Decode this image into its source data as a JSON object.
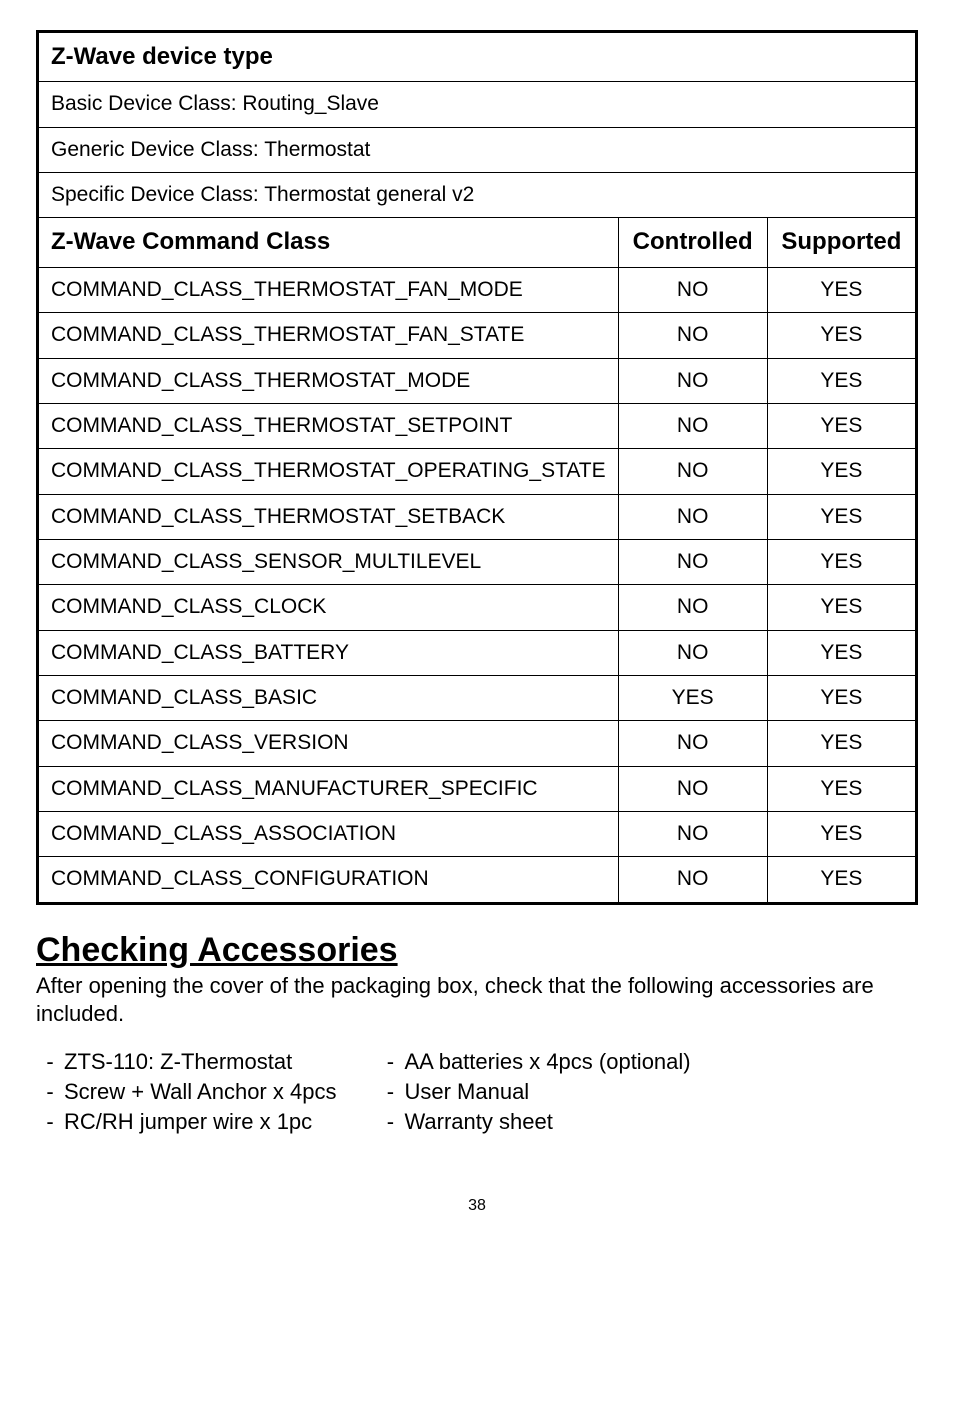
{
  "table": {
    "device_type_header": "Z-Wave device type",
    "basic_class": "Basic Device Class: Routing_Slave",
    "generic_class": "Generic Device Class: Thermostat",
    "specific_class": "Specific Device Class: Thermostat general v2",
    "col_class": "Z-Wave Command Class",
    "col_controlled": "Controlled",
    "col_supported": "Supported",
    "rows": [
      {
        "class": "COMMAND_CLASS_THERMOSTAT_FAN_MODE",
        "controlled": "NO",
        "supported": "YES"
      },
      {
        "class": "COMMAND_CLASS_THERMOSTAT_FAN_STATE",
        "controlled": "NO",
        "supported": "YES"
      },
      {
        "class": "COMMAND_CLASS_THERMOSTAT_MODE",
        "controlled": "NO",
        "supported": "YES"
      },
      {
        "class": "COMMAND_CLASS_THERMOSTAT_SETPOINT",
        "controlled": "NO",
        "supported": "YES"
      },
      {
        "class": "COMMAND_CLASS_THERMOSTAT_OPERATING_STATE",
        "controlled": "NO",
        "supported": "YES"
      },
      {
        "class": "COMMAND_CLASS_THERMOSTAT_SETBACK",
        "controlled": "NO",
        "supported": "YES"
      },
      {
        "class": "COMMAND_CLASS_SENSOR_MULTILEVEL",
        "controlled": "NO",
        "supported": "YES"
      },
      {
        "class": "COMMAND_CLASS_CLOCK",
        "controlled": "NO",
        "supported": "YES"
      },
      {
        "class": "COMMAND_CLASS_BATTERY",
        "controlled": "NO",
        "supported": "YES"
      },
      {
        "class": "COMMAND_CLASS_BASIC",
        "controlled": "YES",
        "supported": "YES"
      },
      {
        "class": "COMMAND_CLASS_VERSION",
        "controlled": "NO",
        "supported": "YES"
      },
      {
        "class": "COMMAND_CLASS_MANUFACTURER_SPECIFIC",
        "controlled": "NO",
        "supported": "YES"
      },
      {
        "class": "COMMAND_CLASS_ASSOCIATION",
        "controlled": "NO",
        "supported": "YES"
      },
      {
        "class": "COMMAND_CLASS_CONFIGURATION",
        "controlled": "NO",
        "supported": "YES"
      }
    ]
  },
  "accessories": {
    "heading": "Checking Accessories",
    "intro": "After opening the cover of the packaging box, check that the following accessories are included.",
    "left": [
      "ZTS-110: Z-Thermostat",
      "Screw + Wall Anchor x 4pcs",
      "RC/RH jumper wire x 1pc"
    ],
    "right": [
      "AA batteries x 4pcs (optional)",
      "User Manual",
      "Warranty sheet"
    ]
  },
  "page_number": "38"
}
